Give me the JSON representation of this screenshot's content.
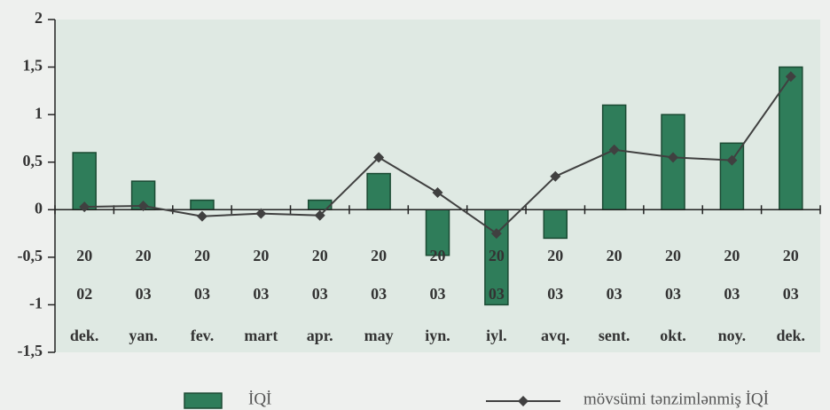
{
  "chart_data": {
    "type": "bar-line",
    "categories": [
      [
        "20",
        "02",
        "dek."
      ],
      [
        "20",
        "03",
        "yan."
      ],
      [
        "20",
        "03",
        "fev."
      ],
      [
        "20",
        "03",
        "mart"
      ],
      [
        "20",
        "03",
        "apr."
      ],
      [
        "20",
        "03",
        "may"
      ],
      [
        "20",
        "03",
        "iyn."
      ],
      [
        "20",
        "03",
        "iyl."
      ],
      [
        "20",
        "03",
        "avq."
      ],
      [
        "20",
        "03",
        "sent."
      ],
      [
        "20",
        "03",
        "okt."
      ],
      [
        "20",
        "03",
        "noy."
      ],
      [
        "20",
        "03",
        "dek."
      ]
    ],
    "series": [
      {
        "name": "İQİ",
        "type": "bar",
        "color": "#2f7d5a",
        "values": [
          0.6,
          0.3,
          0.1,
          0,
          0.1,
          0.38,
          -0.48,
          -1.0,
          -0.3,
          1.1,
          1.0,
          0.7,
          1.5
        ]
      },
      {
        "name": "mövsümi tənzimlənmiş İQİ",
        "type": "line",
        "color": "#404040",
        "values": [
          0.03,
          0.04,
          -0.07,
          -0.04,
          -0.06,
          0.55,
          0.18,
          -0.25,
          0.35,
          0.63,
          0.55,
          0.52,
          1.4
        ]
      }
    ],
    "ylim": [
      -1.5,
      2
    ],
    "yticks": [
      {
        "value": -1.5,
        "label": "-1,5"
      },
      -1,
      {
        "value": -0.5,
        "label": "-0,5"
      },
      0,
      {
        "value": 0.5,
        "label": "0,5"
      },
      1,
      {
        "value": 1.5,
        "label": "1,5"
      },
      2
    ]
  }
}
